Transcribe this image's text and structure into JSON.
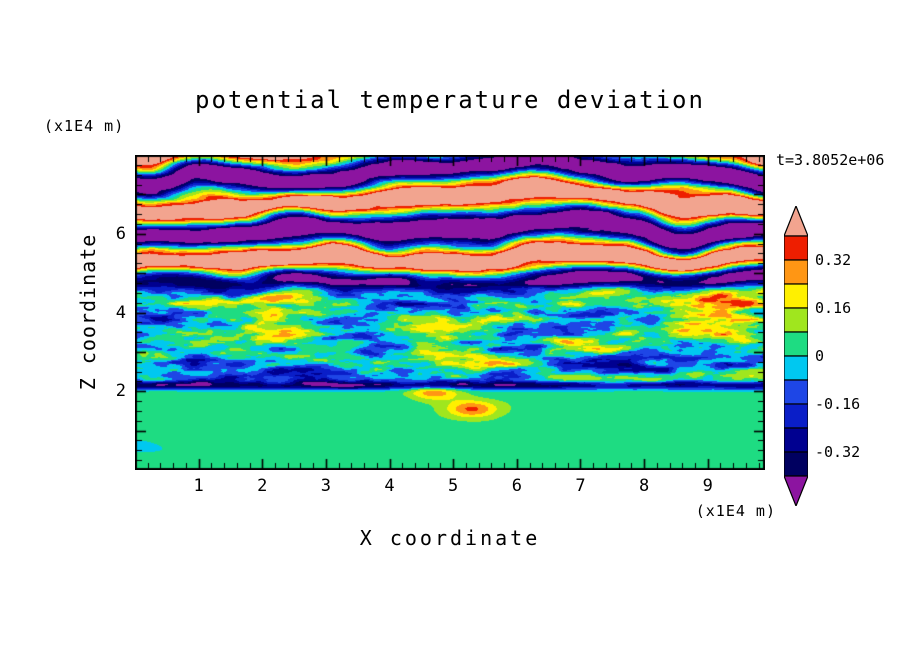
{
  "page": {
    "background": "#ffffff",
    "text_color": "#000000"
  },
  "chart_data": {
    "type": "heatmap",
    "title": "potential temperature deviation",
    "xlabel": "X coordinate",
    "ylabel": "Z coordinate",
    "x_units_label": "(x1E4 m)",
    "z_units_label": "(x1E4 m)",
    "time_annotation": "t=3.8052e+06",
    "x_range": [
      0,
      9.9
    ],
    "z_range": [
      0,
      8
    ],
    "x_major_ticks": [
      1,
      2,
      3,
      4,
      5,
      6,
      7,
      8,
      9
    ],
    "x_labeled_ticks": [
      1,
      2,
      3,
      4,
      5,
      6,
      7,
      8,
      9
    ],
    "x_minor_step": 0.2,
    "z_major_ticks": [
      1,
      2,
      3,
      4,
      5,
      6,
      7
    ],
    "z_labeled_ticks": [
      2,
      4,
      6
    ],
    "z_minor_step": 0.25,
    "grid": false,
    "legend_position": "right-colorbar",
    "value_range_est": [
      -0.5,
      0.5
    ],
    "colorbar": {
      "tick_labels": [
        "0.32",
        "0.16",
        "0",
        "-0.16",
        "-0.32"
      ],
      "levels": [
        0.4,
        0.32,
        0.24,
        0.16,
        0.08,
        0,
        -0.08,
        -0.16,
        -0.24,
        -0.32,
        -0.4
      ],
      "over_color": "#F2A48F",
      "under_color": "#8C14A0",
      "segment_colors": [
        "#EE1E00",
        "#FF9614",
        "#FFF000",
        "#A0E61E",
        "#1EDC82",
        "#00C8F0",
        "#1E46E6",
        "#0A1EC8",
        "#000090",
        "#000060"
      ]
    },
    "field_synthesis": {
      "description": "stratified turbulence: large-amplitude salmon/purple wave layers aloft (z>4.5), small-scale mixed turbulence 2<z<4.5, quiescent green boundary region z<2 with warm vortices near z=2 and a dark shear line at z=2.15",
      "seed": 11,
      "lower": {
        "base": 0.035,
        "amp": 0.055,
        "z_blend": [
          1.95,
          2.35
        ]
      },
      "middle": {
        "amp_large": 0.34,
        "amp_small": 0.2,
        "cool_band": {
          "z": 2.5,
          "amp": -0.07
        },
        "warm_band": {
          "z": 4.5,
          "amp": 0.06
        }
      },
      "upper": {
        "amp": 0.58,
        "kz": 4.6,
        "phase_amp": 7.0,
        "z_blend": [
          4.2,
          5.1
        ]
      },
      "shear_line": {
        "z": 2.15,
        "amp": -0.5,
        "width": 0.012
      },
      "vortices": [
        {
          "x": 5.3,
          "z": 1.55,
          "amp": 0.3
        },
        {
          "x": 4.7,
          "z": 2.0,
          "amp": 0.28
        }
      ]
    }
  }
}
